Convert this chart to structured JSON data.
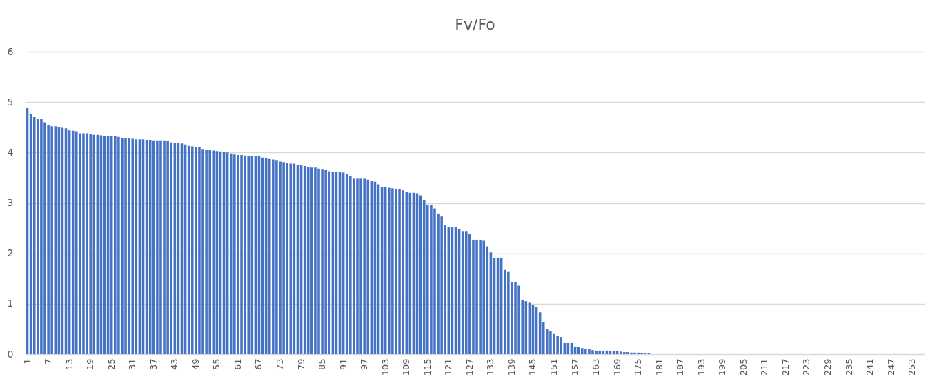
{
  "chart_data": {
    "type": "bar",
    "title": "Fv/Fo",
    "categories": [
      "1",
      null,
      null,
      null,
      null,
      null,
      "7",
      null,
      null,
      null,
      null,
      null,
      "13",
      null,
      null,
      null,
      null,
      null,
      "19",
      null,
      null,
      null,
      null,
      null,
      "25",
      null,
      null,
      null,
      null,
      null,
      "31",
      null,
      null,
      null,
      null,
      null,
      "37",
      null,
      null,
      null,
      null,
      null,
      "43",
      null,
      null,
      null,
      null,
      null,
      "49",
      null,
      null,
      null,
      null,
      null,
      "55",
      null,
      null,
      null,
      null,
      null,
      "61",
      null,
      null,
      null,
      null,
      null,
      "67",
      null,
      null,
      null,
      null,
      null,
      "73",
      null,
      null,
      null,
      null,
      null,
      "79",
      null,
      null,
      null,
      null,
      null,
      "85",
      null,
      null,
      null,
      null,
      null,
      "91",
      null,
      null,
      null,
      null,
      null,
      "97",
      null,
      null,
      null,
      null,
      null,
      "103",
      null,
      null,
      null,
      null,
      null,
      "109",
      null,
      null,
      null,
      null,
      null,
      "115",
      null,
      null,
      null,
      null,
      null,
      "121",
      null,
      null,
      null,
      null,
      null,
      "127",
      null,
      null,
      null,
      null,
      null,
      "133",
      null,
      null,
      null,
      null,
      null,
      "139",
      null,
      null,
      null,
      null,
      null,
      "145",
      null,
      null,
      null,
      null,
      null,
      "151",
      null,
      null,
      null,
      null,
      null,
      "157",
      null,
      null,
      null,
      null,
      null,
      "163",
      null,
      null,
      null,
      null,
      null,
      "169",
      null,
      null,
      null,
      null,
      null,
      "175",
      null,
      null,
      null,
      null,
      null,
      "181",
      null,
      null,
      null,
      null,
      null,
      "187",
      null,
      null,
      null,
      null,
      null,
      "193",
      null,
      null,
      null,
      null,
      null,
      "199",
      null,
      null,
      null,
      null,
      null,
      "205",
      null,
      null,
      null,
      null,
      null,
      "211",
      null,
      null,
      null,
      null,
      null,
      "217",
      null,
      null,
      null,
      null,
      null,
      "223",
      null,
      null,
      null,
      null,
      null,
      "229",
      null,
      null,
      null,
      null,
      null,
      "235",
      null,
      null,
      null,
      null,
      null,
      "241",
      null,
      null,
      null,
      null,
      null,
      "247",
      null,
      null,
      null,
      null,
      null,
      "253",
      null,
      null,
      null
    ],
    "values": [
      4.88,
      4.76,
      4.7,
      4.67,
      4.67,
      4.6,
      4.55,
      4.52,
      4.52,
      4.5,
      4.49,
      4.48,
      4.44,
      4.43,
      4.42,
      4.38,
      4.38,
      4.38,
      4.36,
      4.35,
      4.35,
      4.34,
      4.32,
      4.32,
      4.32,
      4.32,
      4.31,
      4.29,
      4.29,
      4.28,
      4.27,
      4.26,
      4.26,
      4.26,
      4.25,
      4.25,
      4.24,
      4.24,
      4.24,
      4.24,
      4.23,
      4.2,
      4.19,
      4.19,
      4.18,
      4.16,
      4.13,
      4.12,
      4.1,
      4.1,
      4.07,
      4.05,
      4.05,
      4.04,
      4.03,
      4.02,
      4.01,
      4.0,
      3.98,
      3.96,
      3.95,
      3.95,
      3.94,
      3.93,
      3.93,
      3.93,
      3.93,
      3.9,
      3.88,
      3.87,
      3.86,
      3.85,
      3.82,
      3.81,
      3.8,
      3.78,
      3.78,
      3.76,
      3.76,
      3.73,
      3.71,
      3.7,
      3.7,
      3.68,
      3.66,
      3.65,
      3.63,
      3.62,
      3.62,
      3.62,
      3.6,
      3.58,
      3.53,
      3.48,
      3.48,
      3.48,
      3.48,
      3.46,
      3.44,
      3.42,
      3.37,
      3.32,
      3.32,
      3.3,
      3.29,
      3.28,
      3.27,
      3.25,
      3.22,
      3.2,
      3.2,
      3.19,
      3.15,
      3.06,
      2.96,
      2.96,
      2.89,
      2.79,
      2.73,
      2.56,
      2.52,
      2.52,
      2.52,
      2.48,
      2.43,
      2.43,
      2.38,
      2.27,
      2.27,
      2.26,
      2.25,
      2.14,
      2.02,
      1.9,
      1.9,
      1.9,
      1.67,
      1.63,
      1.43,
      1.43,
      1.36,
      1.08,
      1.05,
      1.02,
      0.98,
      0.94,
      0.83,
      0.63,
      0.49,
      0.45,
      0.4,
      0.36,
      0.34,
      0.22,
      0.22,
      0.22,
      0.15,
      0.15,
      0.12,
      0.1,
      0.1,
      0.08,
      0.07,
      0.07,
      0.07,
      0.07,
      0.07,
      0.06,
      0.06,
      0.05,
      0.04,
      0.04,
      0.03,
      0.03,
      0.03,
      0.02,
      0.02,
      0.02,
      0,
      0,
      0,
      0,
      0,
      0,
      0,
      0,
      0,
      0,
      0,
      0,
      0,
      0,
      0,
      0,
      0,
      0,
      0,
      0,
      0,
      0,
      0,
      0,
      0,
      0,
      0,
      0,
      0,
      0,
      0,
      0,
      0,
      0,
      0,
      0,
      0,
      0,
      0,
      0,
      0,
      0,
      0,
      0,
      0,
      0,
      0,
      0,
      0,
      0,
      0,
      0,
      0,
      0,
      0,
      0,
      0,
      0,
      0,
      0,
      0,
      0,
      0,
      0,
      0,
      0,
      0,
      0,
      0,
      0,
      0,
      0,
      0,
      0,
      0,
      0,
      0,
      0
    ],
    "color": "#4472c4",
    "ylim": [
      0,
      6
    ],
    "yticks": [
      0,
      1,
      2,
      3,
      4,
      5,
      6
    ],
    "grid": "y"
  }
}
